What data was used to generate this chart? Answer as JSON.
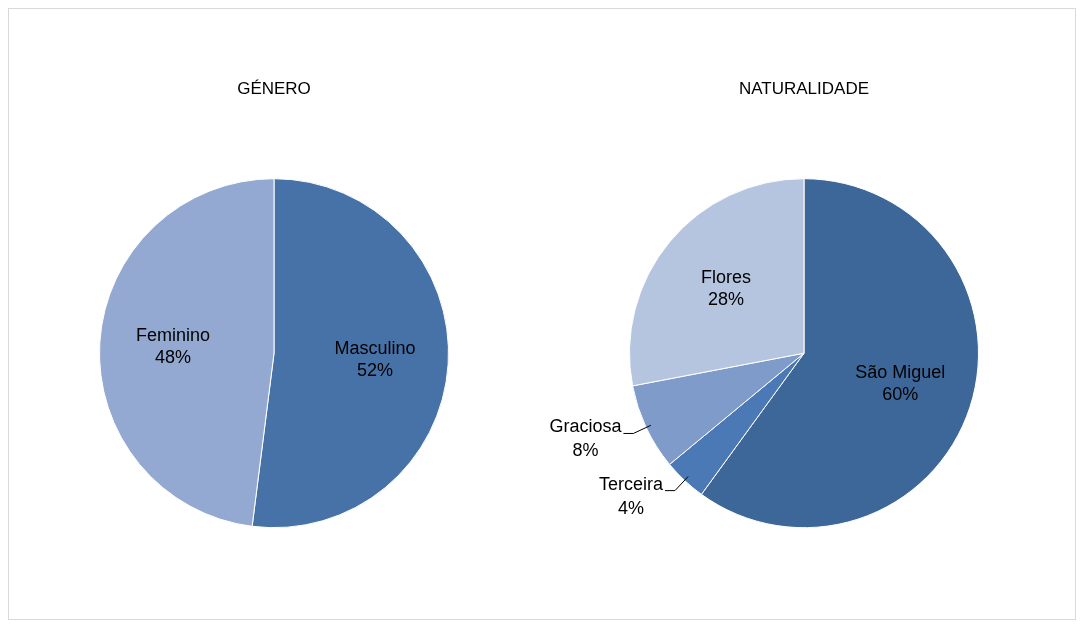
{
  "chart_data": [
    {
      "type": "pie",
      "title": "GÉNERO",
      "categories": [
        "Masculino",
        "Feminino"
      ],
      "values": [
        52,
        48
      ],
      "value_labels": [
        "52%",
        "48%"
      ],
      "colors": [
        "#4672a8",
        "#94a9d1"
      ],
      "legend": false
    },
    {
      "type": "pie",
      "title": "NATURALIDADE",
      "categories": [
        "São Miguel",
        "Terceira",
        "Graciosa",
        "Flores"
      ],
      "values": [
        60,
        4,
        8,
        28
      ],
      "value_labels": [
        "60%",
        "4%",
        "8%",
        "28%"
      ],
      "colors": [
        "#3e6799",
        "#4a79b5",
        "#7e9bc9",
        "#b5c5df"
      ],
      "legend": false
    }
  ]
}
